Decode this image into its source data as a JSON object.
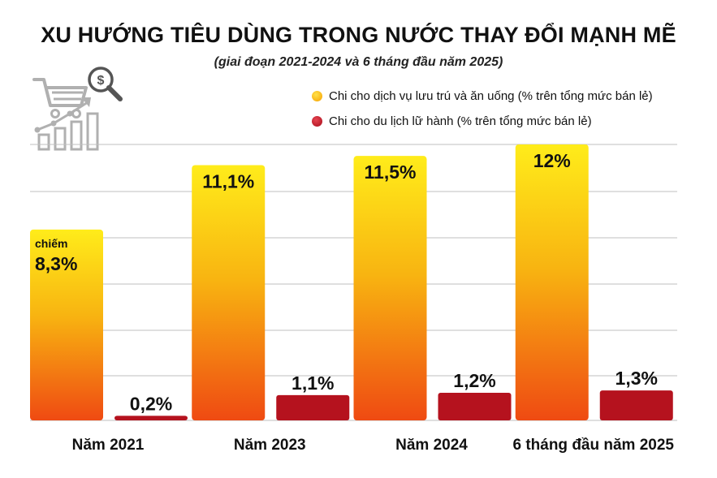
{
  "chart_data": {
    "type": "bar",
    "title": "XU HƯỚNG TIÊU DÙNG TRONG NƯỚC THAY ĐỔI MẠNH MẼ",
    "subtitle": "(giai đoạn 2021-2024 và 6 tháng đầu năm 2025)",
    "categories": [
      "Năm 2021",
      "Năm 2023",
      "Năm 2024",
      "6 tháng đầu năm 2025"
    ],
    "series": [
      {
        "name": "Chi cho dịch vụ lưu trú và ăn uống (% trên tổng mức bán lẻ)",
        "values": [
          8.3,
          11.1,
          11.5,
          12
        ],
        "labels": [
          "8,3%",
          "11,1%",
          "11,5%",
          "12%"
        ],
        "color": "#f7a000"
      },
      {
        "name": "Chi cho du lịch lữ hành (% trên tổng mức bán lẻ)",
        "values": [
          0.2,
          1.1,
          1.2,
          1.3
        ],
        "labels": [
          "0,2%",
          "1,1%",
          "1,2%",
          "1,3%"
        ],
        "color": "#b5121e"
      }
    ],
    "annotations": {
      "first_bar_prefix": "chiếm"
    },
    "ylim": [
      0,
      12
    ],
    "grid": true,
    "legend_position": "top-right"
  },
  "colors": {
    "bar1_top": "#ffec1a",
    "bar1_bottom": "#ef4a12",
    "bar2": "#b5121e",
    "grid": "#bfbfbf",
    "icon": "#b0b0b0",
    "icon_dark": "#555555"
  },
  "icons": {
    "header_icon": "shopping-cart-growth-chart-magnifier-dollar-icon"
  }
}
